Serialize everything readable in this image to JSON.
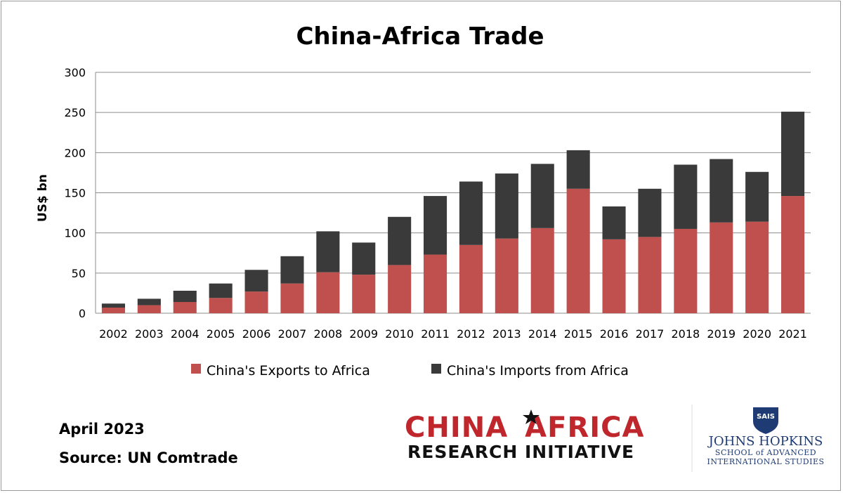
{
  "chart_data": {
    "type": "bar",
    "stacked": true,
    "title": "China-Africa Trade",
    "ylabel": "US$ bn",
    "xlabel": "",
    "ylim": [
      0,
      300
    ],
    "yticks": [
      0,
      50,
      100,
      150,
      200,
      250,
      300
    ],
    "grid": true,
    "legend_position": "bottom",
    "categories": [
      "2002",
      "2003",
      "2004",
      "2005",
      "2006",
      "2007",
      "2008",
      "2009",
      "2010",
      "2011",
      "2012",
      "2013",
      "2014",
      "2015",
      "2016",
      "2017",
      "2018",
      "2019",
      "2020",
      "2021"
    ],
    "series": [
      {
        "name": "China's Exports to Africa",
        "color": "#c0504d",
        "values": [
          7,
          10,
          14,
          19,
          27,
          37,
          51,
          48,
          60,
          73,
          85,
          93,
          106,
          155,
          92,
          95,
          105,
          113,
          114,
          146
        ]
      },
      {
        "name": "China's Imports from Africa",
        "color": "#3a3a3a",
        "values": [
          5,
          8,
          14,
          18,
          27,
          34,
          51,
          40,
          60,
          73,
          79,
          81,
          80,
          48,
          41,
          60,
          80,
          79,
          62,
          105
        ]
      }
    ]
  },
  "footer": {
    "date": "April 2023",
    "source": "Source: UN Comtrade"
  },
  "logos": {
    "cari": {
      "word1": "CHINA",
      "word2": "AFRICA",
      "line2": "RESEARCH INITIATIVE",
      "color": "#c0272d"
    },
    "jhu": {
      "badge": "SAIS",
      "line1": "JOHNS HOPKINS",
      "line2": "SCHOOL of ADVANCED",
      "line3": "INTERNATIONAL STUDIES",
      "color": "#1f3b73"
    }
  },
  "colors": {
    "grid": "#8c8c8c",
    "axis": "#8c8c8c"
  }
}
